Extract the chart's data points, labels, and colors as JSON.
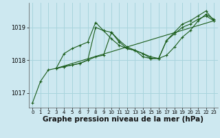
{
  "background_color": "#cde8f0",
  "grid_color": "#a8d4dd",
  "line_color": "#1a5c1a",
  "marker_color": "#1a5c1a",
  "xlabel": "Graphe pression niveau de la mer (hPa)",
  "xlabel_fontsize": 7.5,
  "ylabel_ticks": [
    1017,
    1018,
    1019
  ],
  "xlim": [
    -0.5,
    23.5
  ],
  "ylim": [
    1016.55,
    1019.75
  ],
  "x_ticks": [
    0,
    1,
    2,
    3,
    4,
    5,
    6,
    7,
    8,
    9,
    10,
    11,
    12,
    13,
    14,
    15,
    16,
    17,
    18,
    19,
    20,
    21,
    22,
    23
  ],
  "series": [
    {
      "x": [
        0,
        1,
        2,
        3,
        4,
        5,
        6,
        7,
        8,
        9,
        10,
        11,
        12,
        13,
        14,
        15,
        16,
        17,
        18,
        19,
        20,
        21,
        22,
        23
      ],
      "y": [
        1016.7,
        1017.35,
        1017.7,
        1017.75,
        1018.2,
        1018.35,
        1018.45,
        1018.55,
        1019.15,
        1018.9,
        1018.85,
        1018.6,
        1018.4,
        1018.3,
        1018.2,
        1018.05,
        1018.05,
        1018.15,
        1018.4,
        1018.7,
        1018.9,
        1019.2,
        1019.4,
        1019.25
      ],
      "has_markers": true
    },
    {
      "x": [
        3,
        4,
        5,
        6,
        7,
        8,
        9,
        10,
        11,
        12,
        13,
        14,
        15,
        16,
        17,
        18,
        19,
        20,
        21,
        22,
        23
      ],
      "y": [
        1017.75,
        1017.8,
        1017.85,
        1017.9,
        1018.0,
        1019.0,
        1018.9,
        1018.65,
        1018.45,
        1018.35,
        1018.3,
        1018.2,
        1018.1,
        1018.05,
        1018.6,
        1018.85,
        1019.1,
        1019.2,
        1019.35,
        1019.5,
        1019.2
      ],
      "has_markers": true
    },
    {
      "x": [
        3,
        4,
        5,
        6,
        7,
        8,
        9,
        10,
        11,
        12,
        13,
        14,
        15,
        16,
        17,
        18,
        19,
        20,
        21,
        22,
        23
      ],
      "y": [
        1017.75,
        1017.8,
        1017.85,
        1017.9,
        1018.0,
        1018.1,
        1018.15,
        1018.85,
        1018.55,
        1018.35,
        1018.3,
        1018.1,
        1018.05,
        1018.05,
        1018.6,
        1018.8,
        1019.0,
        1019.1,
        1019.25,
        1019.35,
        1019.2
      ],
      "has_markers": true
    },
    {
      "x": [
        3,
        23
      ],
      "y": [
        1017.75,
        1019.2
      ],
      "has_markers": false
    }
  ]
}
